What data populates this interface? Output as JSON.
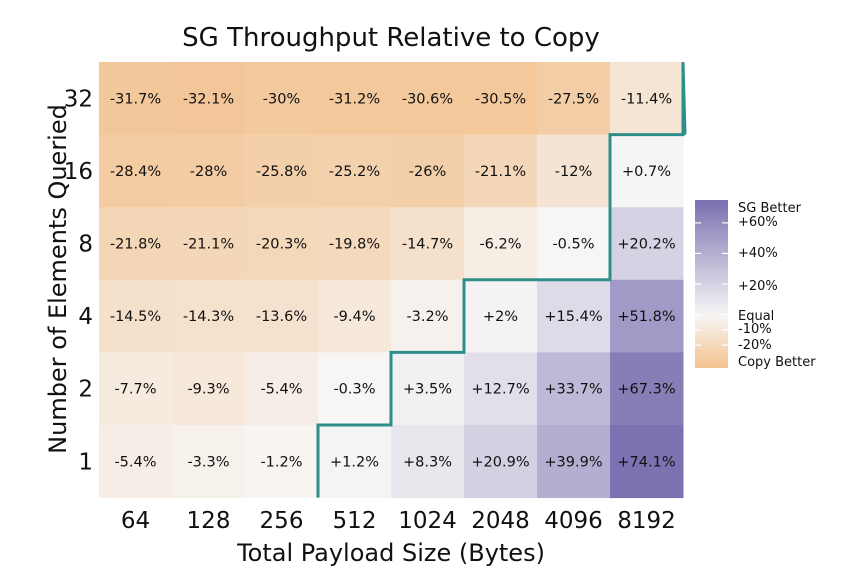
{
  "chart_data": {
    "type": "heatmap",
    "title": "SG Throughput Relative to Copy",
    "xlabel": "Total Payload Size (Bytes)",
    "ylabel": "Number of Elements Queried",
    "x_categories": [
      "64",
      "128",
      "256",
      "512",
      "1024",
      "2048",
      "4096",
      "8192"
    ],
    "y_categories": [
      "32",
      "16",
      "8",
      "4",
      "2",
      "1"
    ],
    "values": [
      [
        -31.7,
        -32.1,
        -30.0,
        -31.2,
        -30.6,
        -30.5,
        -27.5,
        -11.4
      ],
      [
        -28.4,
        -28.0,
        -25.8,
        -25.2,
        -26.0,
        -21.1,
        -12.0,
        0.7
      ],
      [
        -21.8,
        -21.1,
        -20.3,
        -19.8,
        -14.7,
        -6.2,
        -0.5,
        20.2
      ],
      [
        -14.5,
        -14.3,
        -13.6,
        -9.4,
        -3.2,
        2.0,
        15.4,
        51.8
      ],
      [
        -7.7,
        -9.3,
        -5.4,
        -0.3,
        3.5,
        12.7,
        33.7,
        67.3
      ],
      [
        -5.4,
        -3.3,
        -1.2,
        1.2,
        8.3,
        20.9,
        39.9,
        74.1
      ]
    ],
    "labels": [
      [
        "-31.7%",
        "-32.1%",
        "-30%",
        "-31.2%",
        "-30.6%",
        "-30.5%",
        "-27.5%",
        "-11.4%"
      ],
      [
        "-28.4%",
        "-28%",
        "-25.8%",
        "-25.2%",
        "-26%",
        "-21.1%",
        "-12%",
        "+0.7%"
      ],
      [
        "-21.8%",
        "-21.1%",
        "-20.3%",
        "-19.8%",
        "-14.7%",
        "-6.2%",
        "-0.5%",
        "+20.2%"
      ],
      [
        "-14.5%",
        "-14.3%",
        "-13.6%",
        "-9.4%",
        "-3.2%",
        "+2%",
        "+15.4%",
        "+51.8%"
      ],
      [
        "-7.7%",
        "-9.3%",
        "-5.4%",
        "-0.3%",
        "+3.5%",
        "+12.7%",
        "+33.7%",
        "+67.3%"
      ],
      [
        "-5.4%",
        "-3.3%",
        "-1.2%",
        "+1.2%",
        "+8.3%",
        "+20.9%",
        "+39.9%",
        "+74.1%"
      ]
    ],
    "boundary_line": "teal step line separating negative (Copy better) and positive (SG better) cells",
    "legend": {
      "position": "right",
      "labels": [
        "SG Better",
        "+60%",
        "+40%",
        "+20%",
        "Equal",
        "-10%",
        "-20%",
        "Copy Better"
      ],
      "range": [
        -35,
        75
      ],
      "tick_values": [
        60,
        40,
        20,
        0,
        -10,
        -20
      ]
    },
    "colors": {
      "positive": "#7b6fb0",
      "neutral": "#f7f6f6",
      "negative": "#f2c28f",
      "boundary": "#2e8f8a"
    }
  }
}
